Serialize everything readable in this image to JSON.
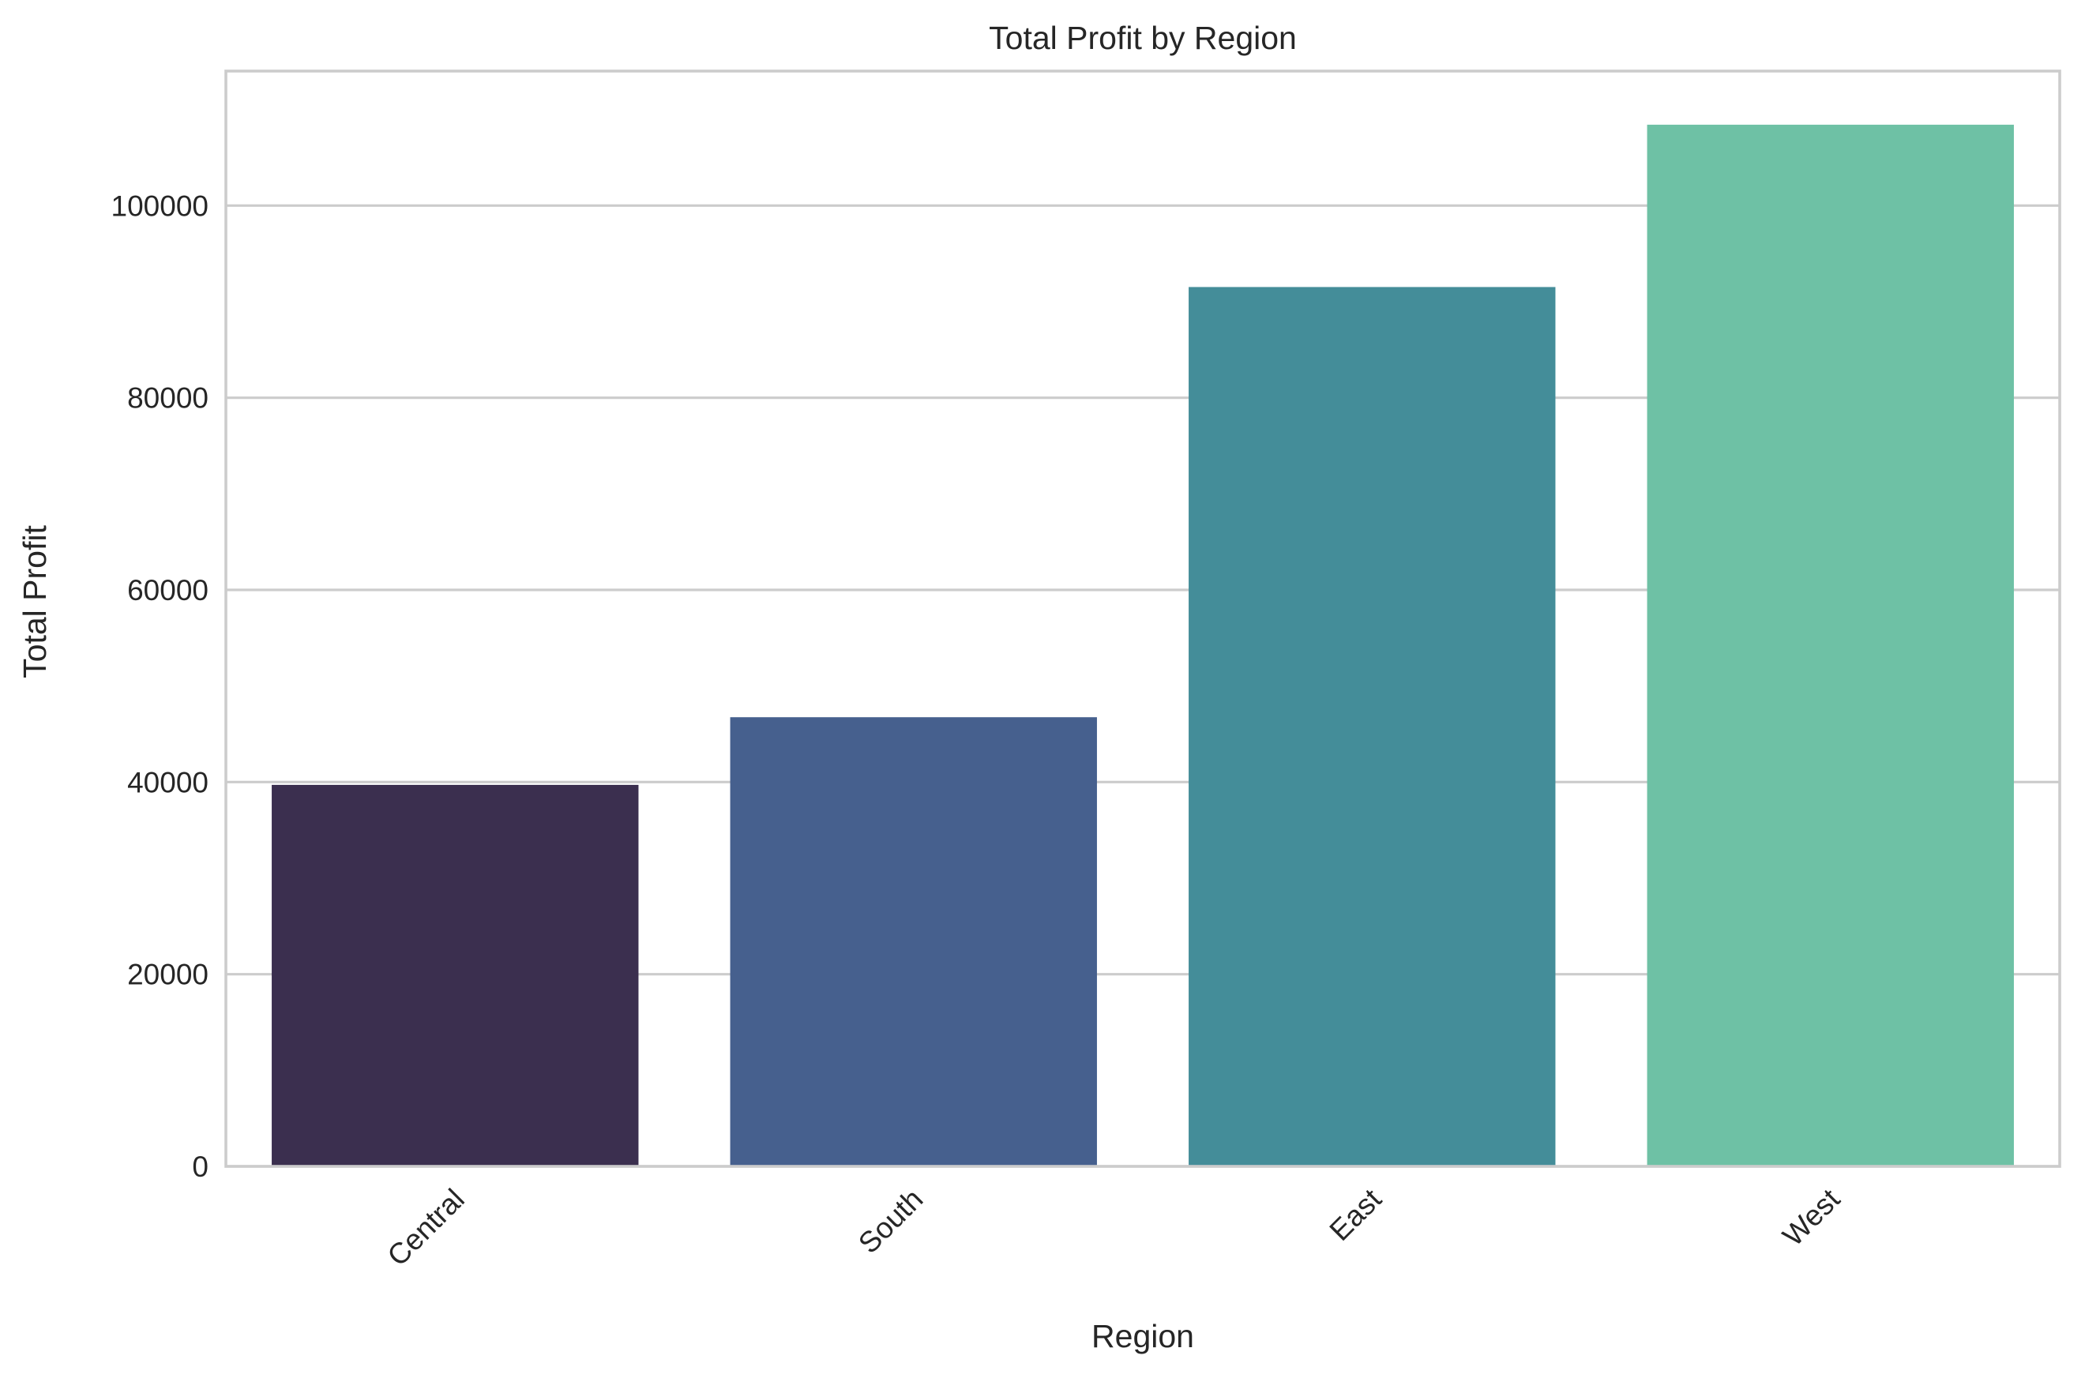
{
  "chart_data": {
    "type": "bar",
    "title": "Total Profit by Region",
    "xlabel": "Region",
    "ylabel": "Total Profit",
    "categories": [
      "Central",
      "South",
      "East",
      "West"
    ],
    "values": [
      39706,
      46749,
      91523,
      108418
    ],
    "colors": [
      "#3b2f4f",
      "#46608e",
      "#448d99",
      "#6ec1a5"
    ],
    "ylim": [
      0,
      114000
    ],
    "yticks": [
      0,
      20000,
      40000,
      60000,
      80000,
      100000
    ],
    "ytick_labels": [
      "0",
      "20000",
      "40000",
      "60000",
      "80000",
      "100000"
    ],
    "grid": "horizontal",
    "xtick_rotation": 45
  }
}
